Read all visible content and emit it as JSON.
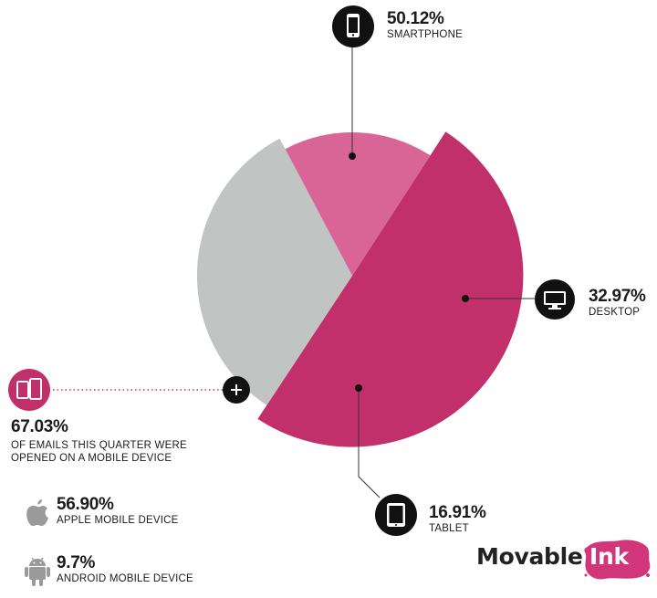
{
  "chart_data": {
    "type": "pie",
    "slices": [
      {
        "label": "SMARTPHONE",
        "value": 50.12,
        "value_label": "50.12%",
        "color": "#c2306b",
        "icon": "smartphone-icon"
      },
      {
        "label": "DESKTOP",
        "value": 32.97,
        "value_label": "32.97%",
        "color": "#c0c5c4",
        "icon": "desktop-monitor-icon"
      },
      {
        "label": "TABLET",
        "value": 16.91,
        "value_label": "16.91%",
        "color": "#d96597",
        "icon": "tablet-icon"
      }
    ],
    "legend": "none",
    "start_angle_description": "smartphone slice begins pointing up-right"
  },
  "mobile_summary": {
    "value_label": "67.03%",
    "text": "OF EMAILS THIS QUARTER WERE OPENED ON A MOBILE DEVICE",
    "icon": "mobile-devices-icon",
    "accent": "#c2306b"
  },
  "os_breakdown": [
    {
      "value_label": "56.90%",
      "label": "APPLE MOBILE DEVICE",
      "icon": "apple-logo-icon"
    },
    {
      "value_label": "9.7%",
      "label": "ANDROID MOBILE DEVICE",
      "icon": "android-logo-icon"
    }
  ],
  "branding": {
    "logo_text": "Movable",
    "logo_ink_text": "Ink",
    "logo_ink_color": "#d2367a"
  }
}
